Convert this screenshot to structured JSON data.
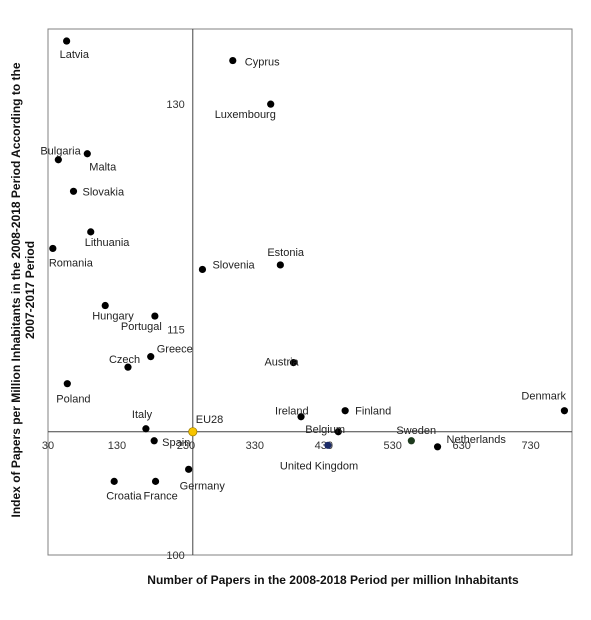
{
  "chart_data": {
    "type": "scatter",
    "title": "",
    "xlabel": "Number of  Papers in the 2008-2018 Period per million Inhabitants",
    "ylabel_lines": [
      "Index of Papers per Million Inhabitants in the 2008-2018 Period According to the",
      "2007-2017 Period"
    ],
    "xlim": [
      30,
      790
    ],
    "ylim": [
      100,
      135
    ],
    "x_ticks": [
      30,
      130,
      230,
      330,
      430,
      530,
      630,
      730
    ],
    "y_ticks": [
      115,
      130,
      100
    ],
    "x_axis_cross_y": 108.2,
    "y_axis_cross_x": 240,
    "grid": false,
    "colors": {
      "default": "#000000",
      "highlight": "#ee1111",
      "eu": "#f7c400",
      "eu_label": "#f0b400",
      "uk": "#1a2a66",
      "sweden": "#1e3a1e"
    },
    "points": [
      {
        "name": "Latvia",
        "x": 57,
        "y": 134.2
      },
      {
        "name": "Cyprus",
        "x": 298,
        "y": 132.9
      },
      {
        "name": "Luxembourg",
        "x": 353,
        "y": 130.0
      },
      {
        "name": "Bulgaria",
        "x": 45,
        "y": 126.3
      },
      {
        "name": "Malta",
        "x": 87,
        "y": 126.7
      },
      {
        "name": "Slovakia",
        "x": 67,
        "y": 124.2,
        "size": "large"
      },
      {
        "name": "Lithuania",
        "x": 92,
        "y": 121.5
      },
      {
        "name": "Romania",
        "x": 37,
        "y": 120.4
      },
      {
        "name": "Estonia",
        "x": 367,
        "y": 119.3
      },
      {
        "name": "Slovenia",
        "x": 254,
        "y": 119.0,
        "highlight": true
      },
      {
        "name": "Hungary",
        "x": 113,
        "y": 116.6
      },
      {
        "name": "Portugal",
        "x": 185,
        "y": 115.9
      },
      {
        "name": "Greece",
        "x": 179,
        "y": 113.2
      },
      {
        "name": "Czech",
        "x": 146,
        "y": 112.5
      },
      {
        "name": "Austria",
        "x": 386,
        "y": 112.8
      },
      {
        "name": "Poland",
        "x": 58,
        "y": 111.4
      },
      {
        "name": "Ireland",
        "x": 397,
        "y": 109.2
      },
      {
        "name": "Finland",
        "x": 461,
        "y": 109.6
      },
      {
        "name": "Denmark",
        "x": 779,
        "y": 109.6
      },
      {
        "name": "Italy",
        "x": 172,
        "y": 108.4
      },
      {
        "name": "Belgium",
        "x": 451,
        "y": 108.2
      },
      {
        "name": "EU28",
        "x": 240,
        "y": 108.2,
        "eu": true
      },
      {
        "name": "Spain",
        "x": 184,
        "y": 107.6
      },
      {
        "name": "United Kingdom",
        "x": 436,
        "y": 107.3,
        "uk": true
      },
      {
        "name": "Sweden",
        "x": 557,
        "y": 107.6,
        "sweden": true
      },
      {
        "name": "Netherlands",
        "x": 595,
        "y": 107.2
      },
      {
        "name": "Germany",
        "x": 234,
        "y": 105.7
      },
      {
        "name": "Croatia",
        "x": 126,
        "y": 104.9
      },
      {
        "name": "France",
        "x": 186,
        "y": 104.9
      }
    ]
  }
}
